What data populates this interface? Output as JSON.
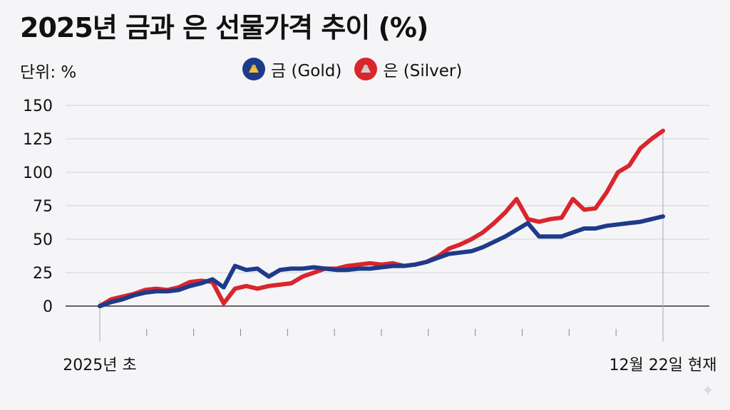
{
  "title": "2025년 금과 은 선물가격 추이 (%)",
  "unit_label": "단위: %",
  "colors": {
    "gold": "#1f3a8a",
    "silver": "#d9262c",
    "grid": "#cfd2d8",
    "axis": "#555555"
  },
  "legend": [
    {
      "key": "gold",
      "label": "금 (Gold)",
      "icon": "gold-bar-icon",
      "bar_color": "#f2c230"
    },
    {
      "key": "silver",
      "label": "은 (Silver)",
      "icon": "silver-bar-icon",
      "bar_color": "#bdbdbd"
    }
  ],
  "chart_data": {
    "type": "line",
    "title": "2025년 금과 은 선물가격 추이 (%)",
    "ylabel": "단위: %",
    "ylim": [
      -25,
      150
    ],
    "yticks": [
      0,
      25,
      50,
      75,
      100,
      125,
      150
    ],
    "grid": true,
    "legend_position": "top-center",
    "x_labels": {
      "start": "2025년 초",
      "end": "12월 22일 현재"
    },
    "x": [
      0,
      2,
      4,
      6,
      8,
      10,
      12,
      14,
      16,
      18,
      20,
      22,
      24,
      26,
      28,
      30,
      32,
      34,
      36,
      38,
      40,
      42,
      44,
      46,
      48,
      50,
      52,
      54,
      56,
      58,
      60,
      62,
      64,
      66,
      68,
      70,
      72,
      74,
      76,
      78,
      80,
      82,
      84,
      86,
      88,
      90,
      92,
      94,
      96,
      98,
      100
    ],
    "series": [
      {
        "name": "금 (Gold)",
        "key": "gold",
        "values": [
          0,
          3,
          5,
          8,
          10,
          11,
          11,
          12,
          15,
          17,
          20,
          14,
          30,
          27,
          28,
          22,
          27,
          28,
          28,
          29,
          28,
          27,
          27,
          28,
          28,
          29,
          30,
          30,
          31,
          33,
          36,
          39,
          40,
          41,
          44,
          48,
          52,
          57,
          62,
          52,
          52,
          52,
          55,
          58,
          58,
          60,
          61,
          62,
          63,
          65,
          67
        ]
      },
      {
        "name": "은 (Silver)",
        "key": "silver",
        "values": [
          0,
          5,
          7,
          9,
          12,
          13,
          12,
          14,
          18,
          19,
          18,
          2,
          13,
          15,
          13,
          15,
          16,
          17,
          22,
          25,
          28,
          28,
          30,
          31,
          32,
          31,
          32,
          30,
          31,
          33,
          37,
          43,
          46,
          50,
          55,
          62,
          70,
          80,
          65,
          63,
          65,
          66,
          80,
          72,
          73,
          85,
          100,
          105,
          118,
          125,
          131
        ]
      }
    ]
  }
}
